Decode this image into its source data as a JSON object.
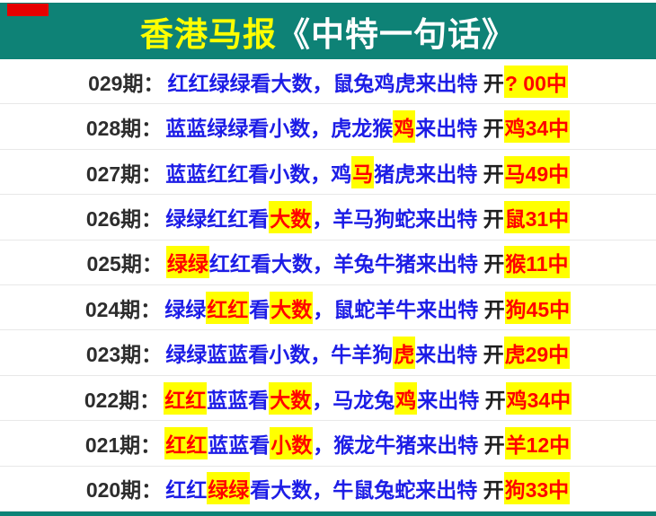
{
  "header": {
    "title_part1": "香港马报",
    "title_part2": "《中特一句话》"
  },
  "colors": {
    "teal": "#0e8276",
    "title_yellow": "#ffff00",
    "blue": "#1d1de6",
    "hl_bg": "#ffff00",
    "hl_text": "#ff0000",
    "mark_red": "#e60000"
  },
  "rows": [
    {
      "period": "029期：",
      "segments": [
        {
          "t": "红红绿绿看大数，鼠兔鸡虎来出特",
          "s": "blue"
        },
        {
          "t": " 开",
          "s": "black"
        },
        {
          "t": "? 00中",
          "s": "hl"
        }
      ]
    },
    {
      "period": "028期：",
      "segments": [
        {
          "t": "蓝蓝绿绿看小数，虎龙猴",
          "s": "blue"
        },
        {
          "t": "鸡",
          "s": "hl"
        },
        {
          "t": "来出特",
          "s": "blue"
        },
        {
          "t": " 开",
          "s": "black"
        },
        {
          "t": "鸡34中",
          "s": "hl"
        }
      ]
    },
    {
      "period": "027期：",
      "segments": [
        {
          "t": "蓝蓝红红看小数，鸡",
          "s": "blue"
        },
        {
          "t": "马",
          "s": "hl"
        },
        {
          "t": "猪虎来出特",
          "s": "blue"
        },
        {
          "t": " 开",
          "s": "black"
        },
        {
          "t": "马49中",
          "s": "hl"
        }
      ]
    },
    {
      "period": "026期：",
      "segments": [
        {
          "t": "绿绿红红看",
          "s": "blue"
        },
        {
          "t": "大数",
          "s": "hl"
        },
        {
          "t": "，羊马狗蛇来出特",
          "s": "blue"
        },
        {
          "t": " 开",
          "s": "black"
        },
        {
          "t": "鼠31中",
          "s": "hl"
        }
      ]
    },
    {
      "period": "025期：",
      "segments": [
        {
          "t": "绿绿",
          "s": "hl"
        },
        {
          "t": "红红看大数，羊兔牛猪来出特",
          "s": "blue"
        },
        {
          "t": " 开",
          "s": "black"
        },
        {
          "t": "猴11中",
          "s": "hl"
        }
      ]
    },
    {
      "period": "024期：",
      "segments": [
        {
          "t": "绿绿",
          "s": "blue"
        },
        {
          "t": "红红",
          "s": "hl"
        },
        {
          "t": "看",
          "s": "blue"
        },
        {
          "t": "大数",
          "s": "hl"
        },
        {
          "t": "，鼠蛇羊牛来出特",
          "s": "blue"
        },
        {
          "t": " 开",
          "s": "black"
        },
        {
          "t": "狗45中",
          "s": "hl"
        }
      ]
    },
    {
      "period": "023期：",
      "segments": [
        {
          "t": "绿绿蓝蓝看小数，牛羊狗",
          "s": "blue"
        },
        {
          "t": "虎",
          "s": "hl"
        },
        {
          "t": "来出特",
          "s": "blue"
        },
        {
          "t": " 开",
          "s": "black"
        },
        {
          "t": "虎29中",
          "s": "hl"
        }
      ]
    },
    {
      "period": "022期：",
      "segments": [
        {
          "t": "红红",
          "s": "hl"
        },
        {
          "t": "蓝蓝看",
          "s": "blue"
        },
        {
          "t": "大数",
          "s": "hl"
        },
        {
          "t": "，马龙兔",
          "s": "blue"
        },
        {
          "t": "鸡",
          "s": "hl"
        },
        {
          "t": "来出特",
          "s": "blue"
        },
        {
          "t": " 开",
          "s": "black"
        },
        {
          "t": "鸡34中",
          "s": "hl"
        }
      ]
    },
    {
      "period": "021期：",
      "segments": [
        {
          "t": "红红",
          "s": "hl"
        },
        {
          "t": "蓝蓝看",
          "s": "blue"
        },
        {
          "t": "小数",
          "s": "hl"
        },
        {
          "t": "，猴龙牛猪来出特",
          "s": "blue"
        },
        {
          "t": " 开",
          "s": "black"
        },
        {
          "t": "羊12中",
          "s": "hl"
        }
      ]
    },
    {
      "period": "020期：",
      "segments": [
        {
          "t": "红红",
          "s": "blue"
        },
        {
          "t": "绿绿",
          "s": "hl"
        },
        {
          "t": "看大数，牛鼠兔蛇来出特",
          "s": "blue"
        },
        {
          "t": " 开",
          "s": "black"
        },
        {
          "t": "狗33中",
          "s": "hl"
        }
      ]
    }
  ]
}
